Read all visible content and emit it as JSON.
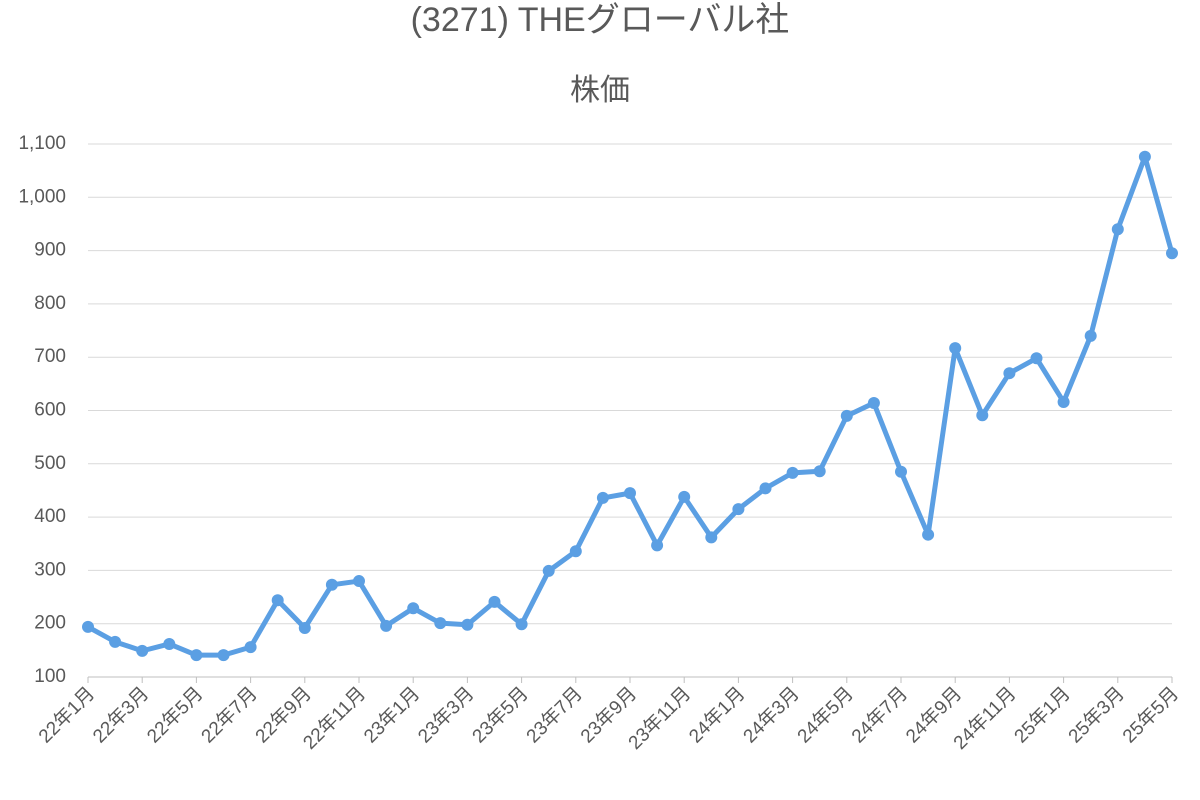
{
  "chart_data": {
    "type": "line",
    "title": "(3271) THEグローバル社",
    "subtitle": "株価",
    "categories": [
      "22年1月",
      null,
      "22年3月",
      null,
      "22年5月",
      null,
      "22年7月",
      null,
      "22年9月",
      null,
      "22年11月",
      null,
      "23年1月",
      null,
      "23年3月",
      null,
      "23年5月",
      null,
      "23年7月",
      null,
      "23年9月",
      null,
      "23年11月",
      null,
      "24年1月",
      null,
      "24年3月",
      null,
      "24年5月",
      null,
      "24年7月",
      null,
      "24年9月",
      null,
      "24年11月",
      null,
      "25年1月",
      null,
      "25年3月",
      null,
      "25年5月"
    ],
    "values": [
      194,
      166,
      149,
      162,
      141,
      141,
      156,
      244,
      192,
      273,
      280,
      196,
      229,
      201,
      198,
      241,
      199,
      299,
      336,
      436,
      445,
      347,
      438,
      362,
      415,
      454,
      483,
      486,
      590,
      614,
      485,
      367,
      717,
      591,
      670,
      698,
      616,
      740,
      940,
      1076,
      895
    ],
    "color": "#5b9fe3",
    "ylim": [
      100,
      1100
    ],
    "yticks": [
      100,
      200,
      300,
      400,
      500,
      600,
      700,
      800,
      900,
      {
        "value": 1000,
        "label": "1,000"
      },
      {
        "value": 1100,
        "label": "1,100"
      }
    ],
    "grid": true
  }
}
